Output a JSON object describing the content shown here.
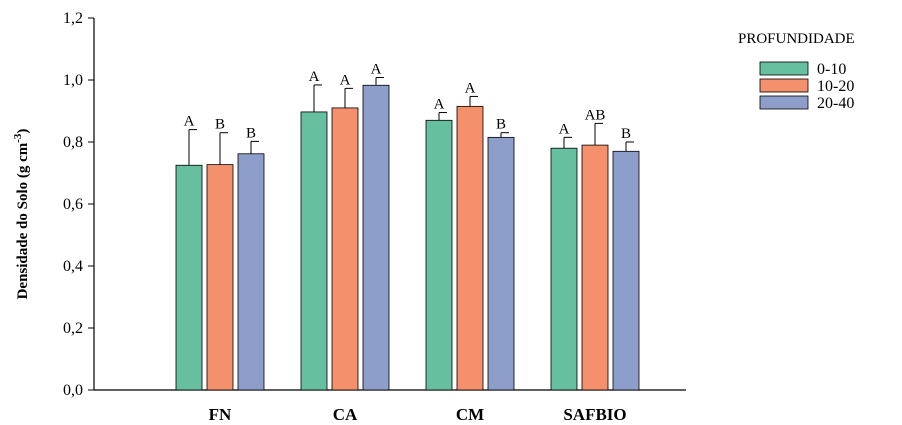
{
  "chart_data": {
    "type": "bar",
    "ylabel_main": "Densidade do Solo (g cm",
    "ylabel_sup": "-3",
    "ylabel_close": ")",
    "ylim": [
      0,
      1.2
    ],
    "yticks": [
      "0,0",
      "0,2",
      "0,4",
      "0,6",
      "0,8",
      "1,0",
      "1,2"
    ],
    "categories": [
      "FN",
      "CA",
      "CM",
      "SAFBIO"
    ],
    "legend_title": "PROFUNDIDADE",
    "legend_position": "top-right",
    "grid": false,
    "series": [
      {
        "name": "0-10",
        "color": "#66bf9f",
        "values": [
          0.725,
          0.897,
          0.87,
          0.78
        ],
        "errors": [
          0.115,
          0.087,
          0.025,
          0.035
        ],
        "letters": [
          "A",
          "A",
          "A",
          "A"
        ]
      },
      {
        "name": "10-20",
        "color": "#f4906b",
        "values": [
          0.727,
          0.91,
          0.915,
          0.79
        ],
        "errors": [
          0.103,
          0.063,
          0.032,
          0.07
        ],
        "letters": [
          "B",
          "A",
          "A",
          "AB"
        ]
      },
      {
        "name": "20-40",
        "color": "#8e9ecb",
        "values": [
          0.762,
          0.983,
          0.815,
          0.77
        ],
        "errors": [
          0.04,
          0.025,
          0.015,
          0.03
        ],
        "letters": [
          "B",
          "A",
          "B",
          "B"
        ]
      }
    ]
  }
}
